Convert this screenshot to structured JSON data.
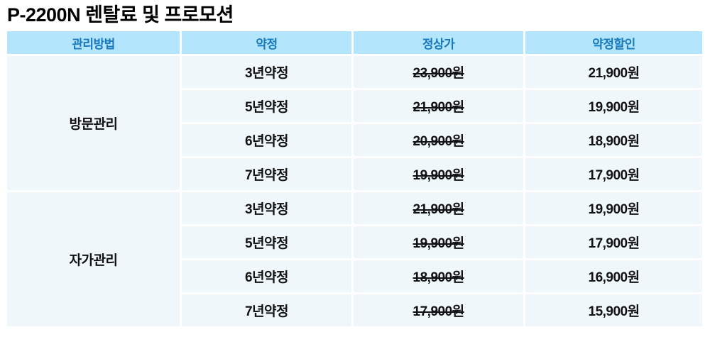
{
  "title": "P-2200N 렌탈료 및 프로모션",
  "table": {
    "headers": [
      "관리방법",
      "약정",
      "정상가",
      "약정할인"
    ],
    "groups": [
      {
        "management": "방문관리",
        "rows": [
          {
            "term": "3년약정",
            "regular_price": "23,900원",
            "discount_price": "21,900원"
          },
          {
            "term": "5년약정",
            "regular_price": "21,900원",
            "discount_price": "19,900원"
          },
          {
            "term": "6년약정",
            "regular_price": "20,900원",
            "discount_price": "18,900원"
          },
          {
            "term": "7년약정",
            "regular_price": "19,900원",
            "discount_price": "17,900원"
          }
        ]
      },
      {
        "management": "자가관리",
        "rows": [
          {
            "term": "3년약정",
            "regular_price": "21,900원",
            "discount_price": "19,900원"
          },
          {
            "term": "5년약정",
            "regular_price": "19,900원",
            "discount_price": "17,900원"
          },
          {
            "term": "6년약정",
            "regular_price": "18,900원",
            "discount_price": "16,900원"
          },
          {
            "term": "7년약정",
            "regular_price": "17,900원",
            "discount_price": "15,900원"
          }
        ]
      }
    ]
  },
  "colors": {
    "header_bg": "#b3e6fc",
    "header_text": "#1879bd",
    "cell_bg": "#eff7fb",
    "body_text": "#121212"
  }
}
